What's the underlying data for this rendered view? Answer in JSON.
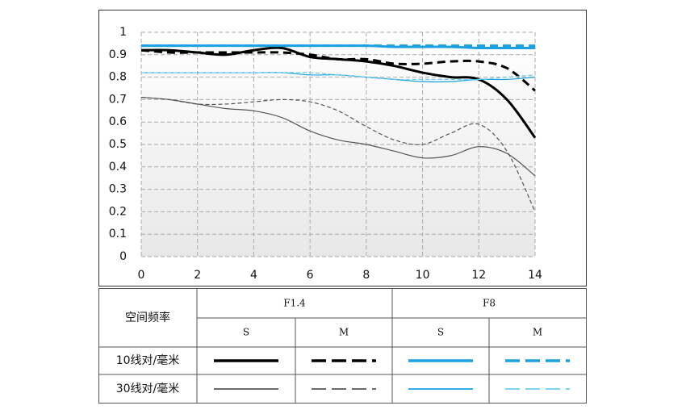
{
  "chart_data": {
    "type": "line",
    "x": [
      0,
      1,
      2,
      3,
      4,
      5,
      6,
      7,
      8,
      9,
      10,
      11,
      12,
      13,
      14
    ],
    "series": [
      {
        "color": "#000000",
        "width": 3,
        "dash": false,
        "values": [
          0.92,
          0.92,
          0.91,
          0.9,
          0.92,
          0.93,
          0.89,
          0.88,
          0.87,
          0.85,
          0.82,
          0.8,
          0.79,
          0.7,
          0.53
        ]
      },
      {
        "color": "#000000",
        "width": 3,
        "dash": true,
        "values": [
          0.92,
          0.91,
          0.91,
          0.91,
          0.91,
          0.91,
          0.9,
          0.88,
          0.88,
          0.86,
          0.86,
          0.87,
          0.87,
          0.84,
          0.74
        ]
      },
      {
        "color": "#1ba1e2",
        "width": 3,
        "dash": false,
        "values": [
          0.94,
          0.94,
          0.94,
          0.94,
          0.94,
          0.94,
          0.94,
          0.94,
          0.94,
          0.935,
          0.935,
          0.935,
          0.93,
          0.93,
          0.93
        ]
      },
      {
        "color": "#1ba1e2",
        "width": 3,
        "dash": true,
        "values": [
          0.94,
          0.94,
          0.94,
          0.94,
          0.94,
          0.94,
          0.94,
          0.94,
          0.94,
          0.94,
          0.94,
          0.94,
          0.94,
          0.94,
          0.94
        ]
      },
      {
        "color": "#555555",
        "width": 1.2,
        "dash": false,
        "values": [
          0.71,
          0.7,
          0.68,
          0.66,
          0.65,
          0.62,
          0.56,
          0.52,
          0.5,
          0.47,
          0.44,
          0.45,
          0.49,
          0.46,
          0.36
        ]
      },
      {
        "color": "#555555",
        "width": 1.2,
        "dash": true,
        "values": [
          0.71,
          0.7,
          0.68,
          0.68,
          0.69,
          0.7,
          0.69,
          0.65,
          0.58,
          0.52,
          0.5,
          0.55,
          0.59,
          0.47,
          0.2
        ]
      },
      {
        "color": "#1ba1e2",
        "width": 1.2,
        "dash": false,
        "values": [
          0.82,
          0.82,
          0.82,
          0.82,
          0.82,
          0.82,
          0.81,
          0.81,
          0.8,
          0.79,
          0.78,
          0.78,
          0.79,
          0.79,
          0.8
        ]
      },
      {
        "color": "#6ccbf2",
        "width": 1.2,
        "dash": true,
        "values": [
          0.82,
          0.82,
          0.82,
          0.82,
          0.82,
          0.82,
          0.82,
          0.81,
          0.8,
          0.79,
          0.79,
          0.79,
          0.79,
          0.8,
          0.81
        ]
      }
    ],
    "xlim": [
      0,
      14
    ],
    "xticks": [
      0,
      2,
      4,
      6,
      8,
      10,
      12,
      14
    ],
    "ylim": [
      0,
      1
    ],
    "yticks": [
      0,
      0.1,
      0.2,
      0.3,
      0.4,
      0.5,
      0.6,
      0.7,
      0.8,
      0.9,
      1
    ],
    "grid": true
  },
  "legend_table": {
    "header": "空间频率",
    "apertures": [
      "F1.4",
      "F8"
    ],
    "positions": [
      "S",
      "M",
      "S",
      "M"
    ],
    "rows": [
      "10线对/毫米",
      "30线对/毫米"
    ]
  }
}
